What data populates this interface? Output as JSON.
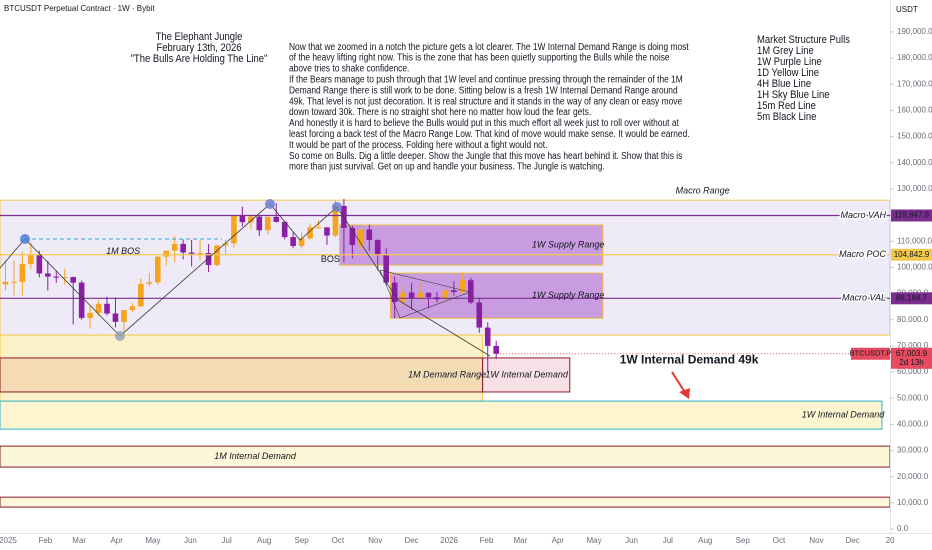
{
  "header": {
    "symbol": "BTCUSDT Perpetual Contract · 1W · Bybit",
    "currency": "USDT"
  },
  "title_block": [
    "The Elephant Jungle",
    "February 13th, 2026",
    "\"The Bulls Are Holding The Line\""
  ],
  "commentary": [
    "Now that we zoomed in a notch the picture gets a lot clearer. The 1W Internal Demand Range is doing most",
    "of the heavy lifting right now. This is the zone that has been quietly supporting the Bulls while the noise",
    "above tries to shake confidence.",
    "If the Bears manage to push through that 1W level and continue pressing through the remainder of the 1M",
    "Demand Range there is still work to be done. Sitting below is a fresh 1W Internal Demand Range around",
    "49k. That level is not just decoration. It is real structure and it stands in the way of any clean or easy move",
    "down toward 30k. There is no straight shot here no matter how loud the fear gets.",
    "And honestly it is hard to believe the Bulls would put in this much effort all week just to roll over without at",
    "least forcing a back test of the Macro Range Low. That kind of move would make sense. It would be earned.",
    "It would be part of the process. Folding here without a fight would not.",
    "So come on Bulls. Dig a little deeper. Show the Jungle that this move has heart behind it. Show that this is",
    "more than just survival. Get on up and handle your business. The Jungle is watching."
  ],
  "legend": {
    "title": "Market Structure Pulls",
    "items": [
      "1M Grey Line",
      "1W Purple Line",
      "1D Yellow Line",
      "4H Blue Line",
      "1H Sky Blue Line",
      "15m Red Line",
      "5m Black Line"
    ]
  },
  "chart_data": {
    "type": "candlestick",
    "up_color": "#f5a41c",
    "down_color": "#8b1fa3",
    "grid": false,
    "x": [
      0,
      1,
      2,
      3,
      4,
      5,
      6,
      7,
      8,
      9,
      10,
      11,
      12,
      13,
      14,
      15,
      16,
      17,
      18,
      19,
      20,
      21,
      22,
      23,
      24,
      25,
      26,
      27,
      28,
      29,
      30,
      31,
      32,
      33,
      34,
      35,
      36,
      37,
      38,
      39,
      40,
      41,
      42,
      43,
      44,
      45,
      46,
      47,
      48,
      49,
      50,
      51,
      52,
      53,
      54,
      55,
      56,
      57,
      58
    ],
    "open": [
      93500,
      94500,
      94500,
      101300,
      104700,
      97700,
      96500,
      96100,
      96300,
      94200,
      80700,
      82600,
      86100,
      82400,
      79200,
      83700,
      85100,
      93700,
      94300,
      104100,
      106400,
      109000,
      105700,
      105200,
      105500,
      100900,
      108400,
      109200,
      119800,
      117300,
      119400,
      114200,
      119300,
      117400,
      111600,
      108200,
      111100,
      115300,
      115300,
      112200,
      123500,
      115100,
      108600,
      114500,
      110500,
      104700,
      94200,
      86800,
      90400,
      88200,
      90300,
      88600,
      87800,
      91300,
      90600,
      95100,
      86600,
      77000,
      70000
    ],
    "high": [
      102700,
      102500,
      106000,
      109600,
      106400,
      102500,
      98900,
      99500,
      96500,
      95000,
      85300,
      87500,
      88800,
      88500,
      83600,
      86400,
      95700,
      97900,
      104300,
      105800,
      112000,
      110700,
      110500,
      110400,
      108900,
      108500,
      110500,
      120000,
      123200,
      120200,
      119800,
      119300,
      124500,
      117600,
      113400,
      113400,
      116800,
      117900,
      115400,
      125700,
      126200,
      116000,
      114000,
      116400,
      110700,
      107500,
      96600,
      93100,
      94100,
      94600,
      90400,
      90600,
      91900,
      94700,
      97900,
      96000,
      88500,
      79000,
      72000
    ],
    "low": [
      91200,
      89300,
      89300,
      99500,
      96200,
      91200,
      94100,
      93400,
      78200,
      80000,
      76600,
      81300,
      81600,
      77100,
      74500,
      83100,
      85100,
      92900,
      93400,
      100700,
      102000,
      103100,
      100400,
      102700,
      98200,
      100400,
      105100,
      107500,
      115700,
      114700,
      112000,
      112600,
      117200,
      110700,
      107300,
      107200,
      110600,
      114800,
      108600,
      111500,
      102000,
      103500,
      106700,
      106300,
      98900,
      93000,
      80600,
      85300,
      83800,
      87500,
      84400,
      86600,
      86900,
      89300,
      90000,
      86000,
      75000,
      60000,
      65000
    ],
    "close": [
      94500,
      94500,
      101300,
      104700,
      97700,
      96500,
      96100,
      96300,
      94200,
      80700,
      82600,
      86100,
      82400,
      79200,
      83700,
      85100,
      93700,
      94300,
      104100,
      106400,
      109000,
      105700,
      105200,
      105500,
      100900,
      108400,
      109200,
      119800,
      117300,
      119400,
      114200,
      119300,
      117400,
      111600,
      108200,
      111100,
      115300,
      115300,
      112200,
      123500,
      115100,
      108600,
      114500,
      110500,
      104700,
      94200,
      86800,
      90400,
      88200,
      90300,
      88600,
      87800,
      91300,
      90600,
      95100,
      86600,
      77000,
      70000,
      67003.9
    ],
    "xlim": [
      -0.65,
      104.55
    ],
    "xticks": [
      {
        "value": 0.29,
        "label": "2025"
      },
      {
        "value": 4.71,
        "label": "Feb"
      },
      {
        "value": 8.71,
        "label": "Mar"
      },
      {
        "value": 13.14,
        "label": "Apr"
      },
      {
        "value": 17.43,
        "label": "May"
      },
      {
        "value": 21.86,
        "label": "Jun"
      },
      {
        "value": 26.14,
        "label": "Jul"
      },
      {
        "value": 30.57,
        "label": "Aug"
      },
      {
        "value": 35,
        "label": "Sep"
      },
      {
        "value": 39.29,
        "label": "Oct"
      },
      {
        "value": 43.71,
        "label": "Nov"
      },
      {
        "value": 48,
        "label": "Dec"
      },
      {
        "value": 52.43,
        "label": "2026"
      },
      {
        "value": 56.86,
        "label": "Feb"
      },
      {
        "value": 60.86,
        "label": "Mar"
      },
      {
        "value": 65.29,
        "label": "Apr"
      },
      {
        "value": 69.57,
        "label": "May"
      },
      {
        "value": 74,
        "label": "Jun"
      },
      {
        "value": 78.29,
        "label": "Jul"
      },
      {
        "value": 82.71,
        "label": "Aug"
      },
      {
        "value": 87.14,
        "label": "Sep"
      },
      {
        "value": 91.43,
        "label": "Oct"
      },
      {
        "value": 95.86,
        "label": "Nov"
      },
      {
        "value": 100.14,
        "label": "Dec"
      },
      {
        "value": 104.57,
        "label": "20"
      }
    ],
    "ylim": [
      -1500,
      202200
    ],
    "yticks": [
      {
        "value": 0,
        "label": "0.0"
      },
      {
        "value": 10000,
        "label": "10,000.0"
      },
      {
        "value": 20000,
        "label": "20,000.0"
      },
      {
        "value": 30000,
        "label": "30,000.0"
      },
      {
        "value": 40000,
        "label": "40,000.0"
      },
      {
        "value": 50000,
        "label": "50,000.0"
      },
      {
        "value": 60000,
        "label": "60,000.0"
      },
      {
        "value": 70000,
        "label": "70,000.0"
      },
      {
        "value": 80000,
        "label": "80,000.0"
      },
      {
        "value": 90000,
        "label": "90,000.0"
      },
      {
        "value": 100000,
        "label": "100,000.0"
      },
      {
        "value": 110000,
        "label": "110,000.0"
      },
      {
        "value": 120000,
        "label": "120,000.0"
      },
      {
        "value": 130000,
        "label": "130,000.0"
      },
      {
        "value": 140000,
        "label": "140,000.0"
      },
      {
        "value": 150000,
        "label": "150,000.0"
      },
      {
        "value": 160000,
        "label": "160,000.0"
      },
      {
        "value": 170000,
        "label": "170,000.0"
      },
      {
        "value": 180000,
        "label": "180,000.0"
      },
      {
        "value": 190000,
        "label": "190,000.0"
      }
    ],
    "zones": [
      {
        "label": "Macro Range",
        "top": 125700,
        "bottom": 74100,
        "from": -0.65,
        "to": 104.55,
        "fill": "#eeeaf7",
        "stroke": "#f2c94c",
        "label_x": 82.4,
        "label_pos": "above"
      },
      {
        "label": "1W Supply Range",
        "top": 116200,
        "bottom": 100900,
        "from": 39.5,
        "to": 70.6,
        "fill": "#c99be0",
        "stroke": "#e8b93d",
        "label_x": 66.5,
        "label_pos": "inside"
      },
      {
        "label": "1W Supply Range",
        "top": 97800,
        "bottom": 80600,
        "from": 45.5,
        "to": 70.6,
        "fill": "#c99be0",
        "stroke": "#e8b93d",
        "label_x": 66.5,
        "label_pos": "inside"
      },
      {
        "top": 74100,
        "bottom": 48900,
        "from": -0.65,
        "to": 56.4,
        "fill": "#fcf1c8",
        "stroke": "#f2c94c"
      },
      {
        "label": "1M Demand Range",
        "top": 65400,
        "bottom": 52400,
        "from": -0.65,
        "to": 56.4,
        "fill": "#f3dcb4",
        "stroke": "#8b1a2b",
        "label_x": 52.2,
        "label_pos": "inside"
      },
      {
        "label": "1W Internal Demand",
        "top": 65400,
        "bottom": 52400,
        "from": 56.4,
        "to": 66.7,
        "fill": "#f7e1e6",
        "stroke": "#8b1a2b",
        "label_x": 61.6,
        "label_pos": "inside"
      },
      {
        "label": "1W Internal Demand",
        "top": 48900,
        "bottom": 38200,
        "from": -0.65,
        "to": 103.6,
        "fill": "#fdf5d0",
        "stroke": "#2bb3c9",
        "label_x": 99,
        "label_pos": "inside"
      },
      {
        "label": "1M Internal Demand",
        "top": 31700,
        "bottom": 23700,
        "from": -0.65,
        "to": 104.55,
        "fill": "#fdf6d8",
        "stroke": "#8b1a2b",
        "label_x": 29.5,
        "label_pos": "inside"
      },
      {
        "top": 12200,
        "bottom": 8400,
        "from": -0.65,
        "to": 104.55,
        "fill": "#fdf6d8",
        "stroke": "#8b1a2b"
      }
    ],
    "levels": [
      {
        "name": "Macro VAH",
        "value": 119847.9,
        "value_label": "119,847.9",
        "color": "#7b2d8e",
        "text_color": "#222222"
      },
      {
        "name": "Macro POC",
        "value": 104842.9,
        "value_label": "104,842.9",
        "color": "#f2c94c",
        "text_color": "#7b2d8e"
      },
      {
        "name": "Macro VAL",
        "value": 88188.7,
        "value_label": "88,188.7",
        "color": "#7b2d8e",
        "text_color": "#222222"
      }
    ],
    "last_price": {
      "name": "BTCUSDT.P",
      "value": 67003.9,
      "value_label": "67,003.9",
      "countdown": "2d 13h",
      "color": "#e84a5f"
    },
    "annotations": [
      {
        "text": "1M BOS",
        "x": 13.9,
        "y": 106000,
        "style": "italic"
      },
      {
        "text": "BOS",
        "x": 38.4,
        "y": 103000,
        "style": "normal"
      },
      {
        "text": "1W Internal Demand 49k",
        "x": 72.6,
        "y": 64500,
        "style": "bold"
      }
    ]
  }
}
